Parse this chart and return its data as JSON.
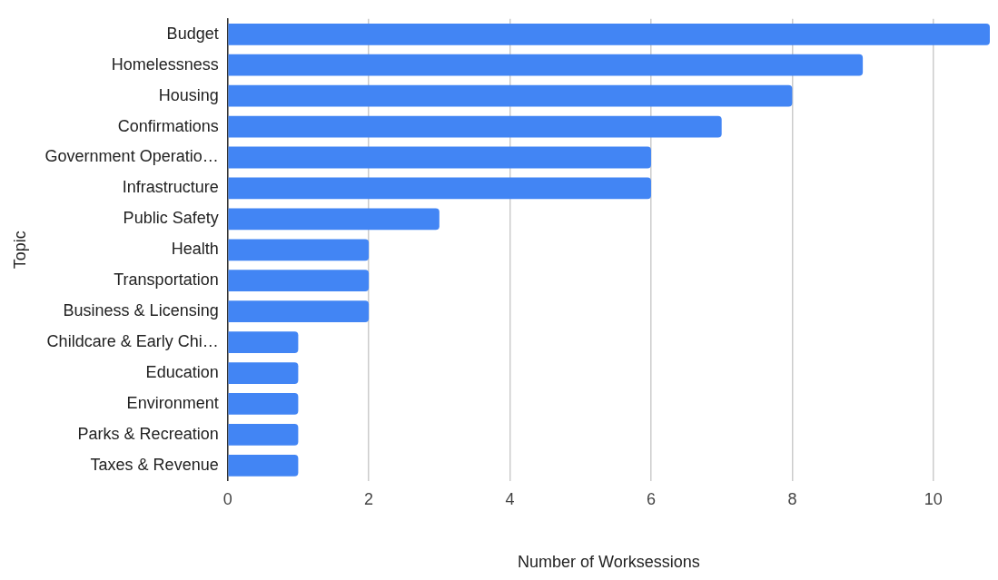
{
  "chart_data": {
    "type": "bar",
    "orientation": "horizontal",
    "xlabel": "Number of Worksessions",
    "ylabel": "Topic",
    "categories": [
      "Budget",
      "Homelessness",
      "Housing",
      "Confirmations",
      "Government Operatio…",
      "Infrastructure",
      "Public Safety",
      "Health",
      "Transportation",
      "Business & Licensing",
      "Childcare & Early Chi…",
      "Education",
      "Environment",
      "Parks & Recreation",
      "Taxes & Revenue"
    ],
    "values": [
      10.8,
      9,
      8,
      7,
      6,
      6,
      3,
      2,
      2,
      2,
      1,
      1,
      1,
      1,
      1
    ],
    "color": "#4285f4",
    "xlim": [
      0,
      10.8
    ],
    "xticks": [
      0,
      2,
      4,
      6,
      8,
      10
    ],
    "grid": "x"
  }
}
